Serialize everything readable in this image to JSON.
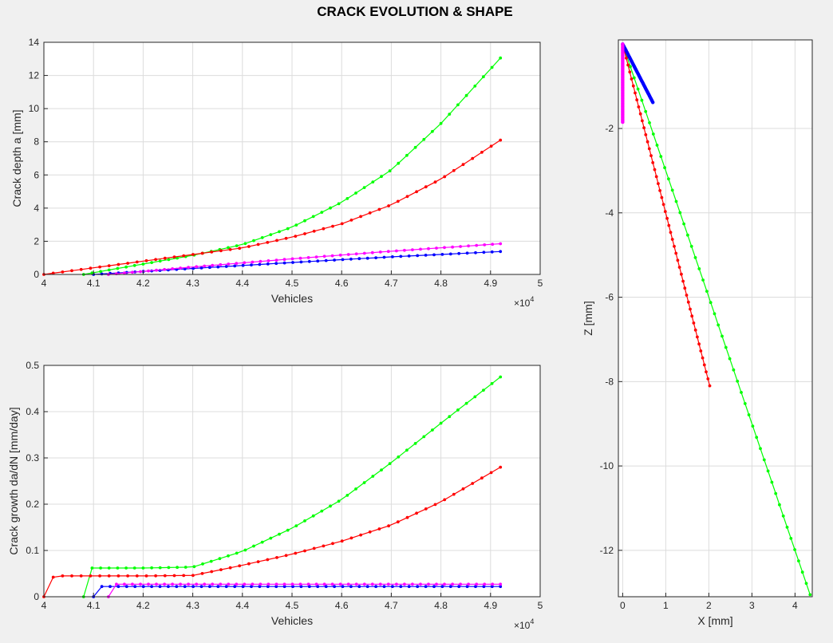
{
  "figure": {
    "suptitle": "CRACK EVOLUTION & SHAPE"
  },
  "colors": {
    "blue": "#0000ff",
    "red": "#ff0000",
    "green": "#00ff00",
    "magenta": "#ff00ff"
  },
  "chart_data": [
    {
      "id": "depth",
      "type": "line",
      "xlabel": "Vehicles",
      "ylabel": "Crack depth a [mm]",
      "x_multiplier": "×10",
      "x_exponent": "4",
      "xlim": [
        4,
        5
      ],
      "ylim": [
        0,
        14
      ],
      "xticks": [
        4,
        4.1,
        4.2,
        4.3,
        4.4,
        4.5,
        4.6,
        4.7,
        4.8,
        4.9,
        5
      ],
      "xtick_labels": [
        "4",
        "4.1",
        "4.2",
        "4.3",
        "4.4",
        "4.5",
        "4.6",
        "4.7",
        "4.8",
        "4.9",
        "5"
      ],
      "yticks": [
        0,
        2,
        4,
        6,
        8,
        10,
        12,
        14
      ],
      "ytick_labels": [
        "0",
        "2",
        "4",
        "6",
        "8",
        "10",
        "12",
        "14"
      ],
      "grid": true,
      "series": [
        {
          "color": "#0000ff",
          "markers": 50,
          "x": [
            4.1,
            4.3,
            4.5,
            4.7,
            4.92
          ],
          "y": [
            0.0,
            0.36,
            0.72,
            1.06,
            1.38
          ]
        },
        {
          "color": "#ff00ff",
          "markers": 50,
          "x": [
            4.13,
            4.3,
            4.5,
            4.7,
            4.92
          ],
          "y": [
            0.0,
            0.45,
            0.94,
            1.4,
            1.85
          ]
        },
        {
          "color": "#00ff00",
          "markers": 50,
          "x": [
            4.08,
            4.3,
            4.4,
            4.5,
            4.6,
            4.7,
            4.8,
            4.92
          ],
          "y": [
            0.0,
            1.15,
            1.8,
            2.85,
            4.35,
            6.3,
            9.1,
            13.05
          ]
        },
        {
          "color": "#ff0000",
          "markers": 50,
          "x": [
            4.0,
            4.1,
            4.2,
            4.3,
            4.4,
            4.5,
            4.6,
            4.7,
            4.8,
            4.92
          ],
          "y": [
            0.0,
            0.4,
            0.8,
            1.2,
            1.6,
            2.25,
            3.05,
            4.2,
            5.75,
            8.1
          ]
        }
      ]
    },
    {
      "id": "growth",
      "type": "line",
      "xlabel": "Vehicles",
      "ylabel": "Crack growth da/dN [mm/day]",
      "x_multiplier": "×10",
      "x_exponent": "4",
      "xlim": [
        4,
        5
      ],
      "ylim": [
        0,
        0.5
      ],
      "xticks": [
        4,
        4.1,
        4.2,
        4.3,
        4.4,
        4.5,
        4.6,
        4.7,
        4.8,
        4.9,
        5
      ],
      "xtick_labels": [
        "4",
        "4.1",
        "4.2",
        "4.3",
        "4.4",
        "4.5",
        "4.6",
        "4.7",
        "4.8",
        "4.9",
        "5"
      ],
      "yticks": [
        0,
        0.1,
        0.2,
        0.3,
        0.4,
        0.5
      ],
      "ytick_labels": [
        "0",
        "0.1",
        "0.2",
        "0.3",
        "0.4",
        "0.5"
      ],
      "grid": true,
      "series": [
        {
          "color": "#0000ff",
          "markers": 50,
          "x": [
            4.1,
            4.115,
            4.3,
            4.6,
            4.92
          ],
          "y": [
            0.0,
            0.022,
            0.022,
            0.022,
            0.022
          ]
        },
        {
          "color": "#ff00ff",
          "markers": 50,
          "x": [
            4.13,
            4.14,
            4.4,
            4.7,
            4.92
          ],
          "y": [
            0.0,
            0.027,
            0.027,
            0.027,
            0.027
          ]
        },
        {
          "color": "#00ff00",
          "markers": 50,
          "x": [
            4.08,
            4.09,
            4.2,
            4.3,
            4.4,
            4.5,
            4.6,
            4.7,
            4.8,
            4.92
          ],
          "y": [
            0.0,
            0.062,
            0.062,
            0.064,
            0.098,
            0.148,
            0.21,
            0.29,
            0.375,
            0.475
          ]
        },
        {
          "color": "#ff0000",
          "markers": 50,
          "x": [
            4.0,
            4.02,
            4.2,
            4.3,
            4.4,
            4.5,
            4.6,
            4.7,
            4.8,
            4.92
          ],
          "y": [
            0.0,
            0.045,
            0.045,
            0.046,
            0.068,
            0.092,
            0.12,
            0.155,
            0.205,
            0.28
          ]
        }
      ]
    },
    {
      "id": "shape",
      "type": "line",
      "xlabel": "X [mm]",
      "ylabel": "Z [mm]",
      "xlim": [
        -0.1,
        4.4
      ],
      "ylim": [
        -13.1,
        0.1
      ],
      "xticks": [
        0,
        1,
        2,
        3,
        4
      ],
      "xtick_labels": [
        "0",
        "1",
        "2",
        "3",
        "4"
      ],
      "yticks": [
        -12,
        -10,
        -8,
        -6,
        -4,
        -2
      ],
      "ytick_labels": [
        "-12",
        "-10",
        "-8",
        "-6",
        "-4",
        "-2"
      ],
      "grid": true,
      "series": [
        {
          "color": "#00ff00",
          "markers": 50,
          "x": [
            0.0,
            4.35
          ],
          "y": [
            0.0,
            -13.05
          ]
        },
        {
          "color": "#ff0000",
          "markers": 50,
          "x": [
            0.0,
            2.02
          ],
          "y": [
            0.0,
            -8.1
          ]
        },
        {
          "color": "#0000ff",
          "markers": 50,
          "thick": true,
          "x": [
            0.0,
            0.7
          ],
          "y": [
            0.0,
            -1.38
          ]
        },
        {
          "color": "#ff00ff",
          "markers": 50,
          "thick": true,
          "x": [
            0.0,
            0.0
          ],
          "y": [
            0.0,
            -1.85
          ]
        }
      ]
    }
  ]
}
